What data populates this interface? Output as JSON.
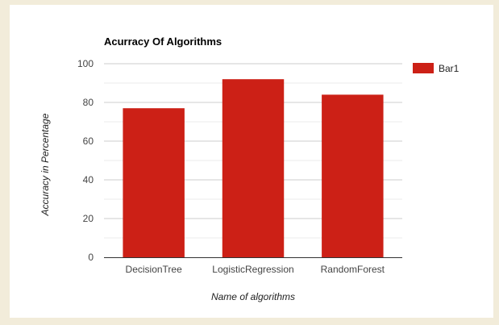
{
  "chart_data": {
    "type": "bar",
    "title": "Acurracy Of Algorithms",
    "xlabel": "Name of algorithms",
    "ylabel": "Accuracy in Percentage",
    "categories": [
      "DecisionTree",
      "LogisticRegression",
      "RandomForest"
    ],
    "series": [
      {
        "name": "Bar1",
        "values": [
          77,
          92,
          84
        ],
        "color": "#cc2016"
      }
    ],
    "ylim": [
      0,
      100
    ],
    "yticks": [
      "0",
      "20",
      "40",
      "60",
      "80",
      "100"
    ],
    "grid": true,
    "legend_position": "right"
  }
}
